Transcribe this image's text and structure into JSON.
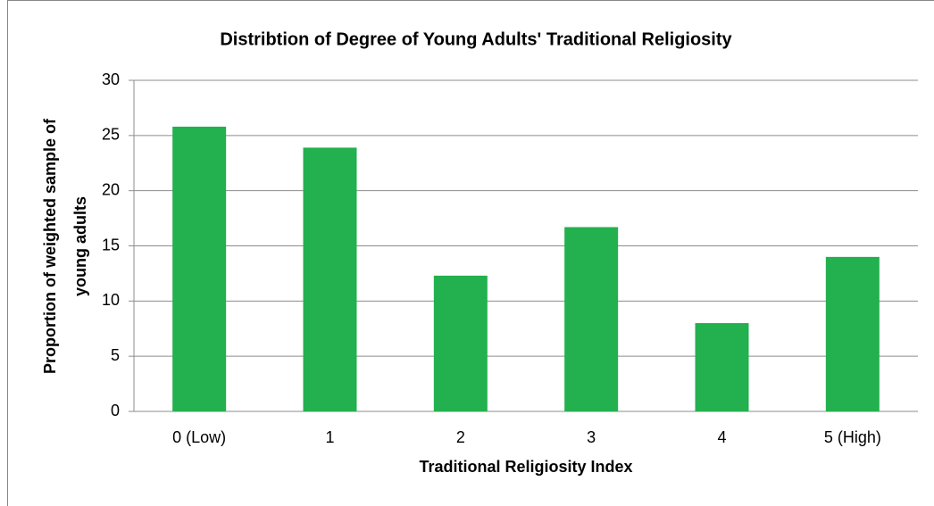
{
  "chart_data": {
    "type": "bar",
    "title": "Distribtion of Degree of Young Adults' Traditional Religiosity",
    "xlabel": "Traditional Religiosity Index",
    "ylabel": [
      "Proportion of weighted sample of",
      "young adults"
    ],
    "categories": [
      "0 (Low)",
      "1",
      "2",
      "3",
      "4",
      "5 (High)"
    ],
    "values": [
      25.8,
      23.9,
      12.3,
      16.7,
      8.0,
      14.0
    ],
    "color": "#23b04f",
    "ylim": [
      0,
      30
    ],
    "yticks": [
      0,
      5,
      10,
      15,
      20,
      25,
      30
    ],
    "grid": true
  }
}
